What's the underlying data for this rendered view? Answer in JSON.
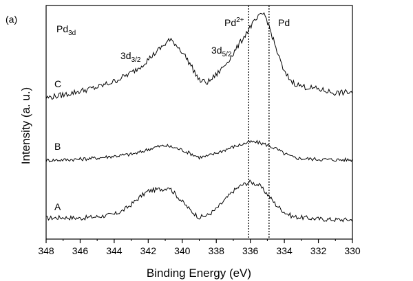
{
  "chart_data": {
    "type": "line",
    "panel_label": "(a)",
    "xlabel": "Binding Energy (eV)",
    "ylabel": "Intensity (a. u.)",
    "xlim": [
      348,
      330
    ],
    "x_reversed": true,
    "x_ticks": [
      348,
      346,
      344,
      342,
      340,
      338,
      336,
      334,
      332,
      330
    ],
    "x_tick_labels": [
      "348",
      "346",
      "344",
      "342",
      "340",
      "338",
      "336",
      "334",
      "332",
      "330"
    ],
    "y_ticks_shown": false,
    "grid": false,
    "annotations": {
      "region_main": "Pd",
      "region_sub": "3d",
      "peak1_main": "3d",
      "peak1_sub": "3/2",
      "peak2_main": "3d",
      "peak2_sub": "5/2",
      "pd2_main": "Pd",
      "pd2_sup": "2+",
      "pd_metal": "Pd"
    },
    "reference_lines": [
      {
        "label": "Pd2+",
        "x": 336.1,
        "style": "dotted"
      },
      {
        "label": "Pd",
        "x": 334.9,
        "style": "dotted"
      }
    ],
    "series": [
      {
        "name": "A",
        "points": [
          [
            348,
            0.04
          ],
          [
            347,
            0.05
          ],
          [
            346,
            0.04
          ],
          [
            345,
            0.06
          ],
          [
            344,
            0.09
          ],
          [
            343.5,
            0.14
          ],
          [
            343,
            0.22
          ],
          [
            342.5,
            0.32
          ],
          [
            342,
            0.4
          ],
          [
            341.5,
            0.42
          ],
          [
            341,
            0.43
          ],
          [
            340.8,
            0.46
          ],
          [
            340.5,
            0.38
          ],
          [
            340,
            0.26
          ],
          [
            339.5,
            0.14
          ],
          [
            339,
            0.05
          ],
          [
            338.5,
            0.08
          ],
          [
            338,
            0.16
          ],
          [
            337.5,
            0.28
          ],
          [
            337,
            0.4
          ],
          [
            336.5,
            0.48
          ],
          [
            336,
            0.52
          ],
          [
            335.5,
            0.48
          ],
          [
            335,
            0.36
          ],
          [
            334.5,
            0.22
          ],
          [
            334,
            0.12
          ],
          [
            333.5,
            0.06
          ],
          [
            333,
            0.05
          ],
          [
            332,
            0.03
          ],
          [
            331,
            0.02
          ],
          [
            330,
            0.02
          ]
        ]
      },
      {
        "name": "B",
        "points": [
          [
            348,
            0.05
          ],
          [
            347,
            0.06
          ],
          [
            346,
            0.07
          ],
          [
            345,
            0.09
          ],
          [
            344,
            0.12
          ],
          [
            343,
            0.15
          ],
          [
            342.5,
            0.18
          ],
          [
            342,
            0.23
          ],
          [
            341.5,
            0.27
          ],
          [
            341,
            0.29
          ],
          [
            340.5,
            0.26
          ],
          [
            340,
            0.22
          ],
          [
            339.5,
            0.16
          ],
          [
            339,
            0.1
          ],
          [
            338.5,
            0.12
          ],
          [
            338,
            0.17
          ],
          [
            337.5,
            0.22
          ],
          [
            337,
            0.27
          ],
          [
            336.5,
            0.31
          ],
          [
            336,
            0.35
          ],
          [
            335.5,
            0.34
          ],
          [
            335,
            0.3
          ],
          [
            334.5,
            0.24
          ],
          [
            334,
            0.16
          ],
          [
            333.5,
            0.1
          ],
          [
            333,
            0.08
          ],
          [
            332,
            0.07
          ],
          [
            331,
            0.06
          ],
          [
            330,
            0.06
          ]
        ]
      },
      {
        "name": "C",
        "points": [
          [
            348,
            0.04
          ],
          [
            347,
            0.07
          ],
          [
            346,
            0.11
          ],
          [
            345,
            0.15
          ],
          [
            344,
            0.21
          ],
          [
            343,
            0.3
          ],
          [
            342.5,
            0.36
          ],
          [
            342,
            0.44
          ],
          [
            341.5,
            0.52
          ],
          [
            341,
            0.6
          ],
          [
            340.8,
            0.64
          ],
          [
            340.5,
            0.62
          ],
          [
            340,
            0.52
          ],
          [
            339.5,
            0.38
          ],
          [
            339,
            0.22
          ],
          [
            338.5,
            0.2
          ],
          [
            338,
            0.28
          ],
          [
            337.5,
            0.38
          ],
          [
            337,
            0.5
          ],
          [
            336.5,
            0.64
          ],
          [
            336,
            0.78
          ],
          [
            335.5,
            0.88
          ],
          [
            335.2,
            0.92
          ],
          [
            335,
            0.84
          ],
          [
            334.5,
            0.56
          ],
          [
            334,
            0.3
          ],
          [
            333.5,
            0.2
          ],
          [
            333,
            0.16
          ],
          [
            332,
            0.13
          ],
          [
            331,
            0.09
          ],
          [
            330,
            0.1
          ]
        ]
      }
    ]
  }
}
